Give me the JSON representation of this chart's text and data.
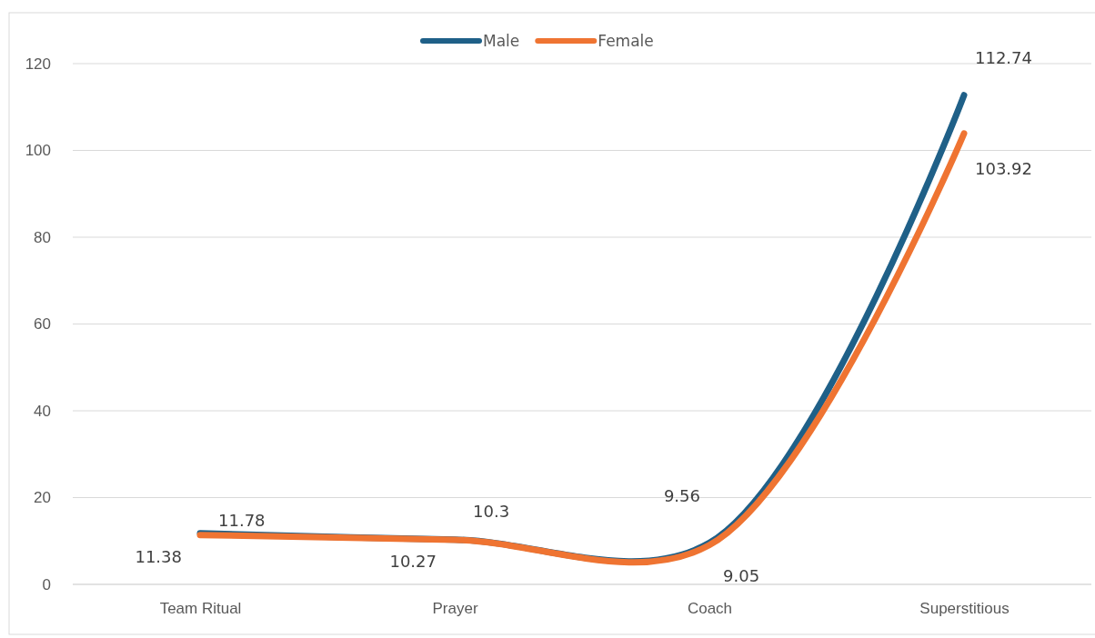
{
  "chart_data": {
    "type": "line",
    "categories": [
      "Team Ritual",
      "Prayer",
      "Coach",
      "Superstitious"
    ],
    "series": [
      {
        "name": "Male",
        "color": "#1f6088",
        "values": [
          11.78,
          10.3,
          9.56,
          112.74
        ]
      },
      {
        "name": "Female",
        "color": "#ef7432",
        "values": [
          11.38,
          10.27,
          9.05,
          103.92
        ]
      }
    ],
    "ylim": [
      0,
      120
    ],
    "yticks": [
      0,
      20,
      40,
      60,
      80,
      100,
      120
    ],
    "grid": "y",
    "legend": "top",
    "data_labels": true,
    "line_style": "solid",
    "marker": "none"
  }
}
